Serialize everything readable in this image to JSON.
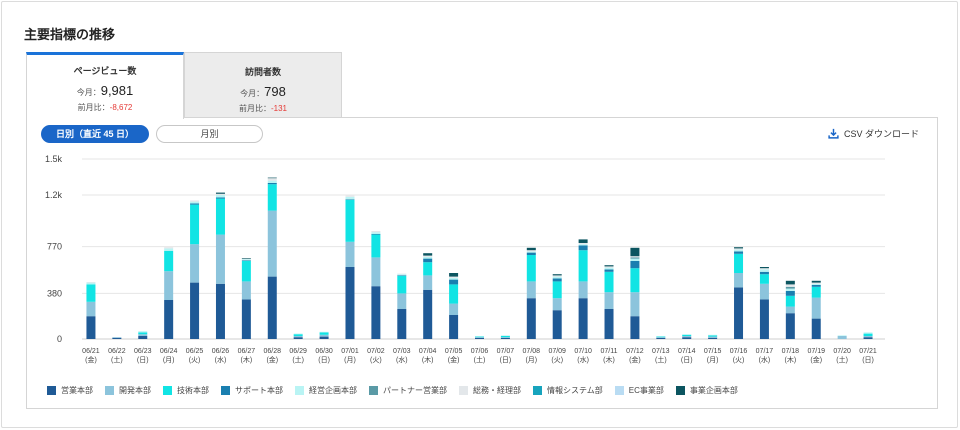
{
  "section": {
    "title": "主要指標の推移"
  },
  "tabs": [
    {
      "title": "ページビュー数",
      "month_label": "今月：",
      "month_value": "9,981",
      "prev_label": "前月比：",
      "prev_value": "-8,672"
    },
    {
      "title": "訪問者数",
      "month_label": "今月：",
      "month_value": "798",
      "prev_label": "前月比：",
      "prev_value": "-131"
    }
  ],
  "toggle": {
    "daily": "日別（直近 45 日）",
    "monthly": "月別"
  },
  "csv_button": {
    "label": "CSV ダウンロード",
    "icon": "download-icon"
  },
  "chart_data": {
    "type": "bar",
    "stacked": true,
    "ylim": [
      0,
      1500
    ],
    "yticks": [
      0,
      380,
      770,
      1200,
      1500
    ],
    "ytick_labels": [
      "0",
      "380",
      "770",
      "1.2k",
      "1.5k"
    ],
    "grid": true,
    "legend_position": "bottom",
    "categories": [
      [
        "06/21",
        "(金)"
      ],
      [
        "06/22",
        "(土)"
      ],
      [
        "06/23",
        "(日)"
      ],
      [
        "06/24",
        "(月)"
      ],
      [
        "06/25",
        "(火)"
      ],
      [
        "06/26",
        "(水)"
      ],
      [
        "06/27",
        "(木)"
      ],
      [
        "06/28",
        "(金)"
      ],
      [
        "06/29",
        "(土)"
      ],
      [
        "06/30",
        "(日)"
      ],
      [
        "07/01",
        "(月)"
      ],
      [
        "07/02",
        "(火)"
      ],
      [
        "07/03",
        "(水)"
      ],
      [
        "07/04",
        "(木)"
      ],
      [
        "07/05",
        "(金)"
      ],
      [
        "07/06",
        "(土)"
      ],
      [
        "07/07",
        "(日)"
      ],
      [
        "07/08",
        "(月)"
      ],
      [
        "07/09",
        "(火)"
      ],
      [
        "07/10",
        "(水)"
      ],
      [
        "07/11",
        "(木)"
      ],
      [
        "07/12",
        "(金)"
      ],
      [
        "07/13",
        "(土)"
      ],
      [
        "07/14",
        "(日)"
      ],
      [
        "07/15",
        "(月)"
      ],
      [
        "07/16",
        "(火)"
      ],
      [
        "07/17",
        "(水)"
      ],
      [
        "07/18",
        "(木)"
      ],
      [
        "07/19",
        "(金)"
      ],
      [
        "07/20",
        "(土)"
      ],
      [
        "07/21",
        "(日)"
      ]
    ],
    "series": [
      {
        "name": "営業本部",
        "color": "#1f5a96",
        "values": [
          190,
          10,
          25,
          325,
          470,
          460,
          330,
          520,
          15,
          20,
          600,
          440,
          250,
          410,
          200,
          10,
          10,
          340,
          240,
          340,
          250,
          190,
          10,
          15,
          10,
          430,
          330,
          215,
          170,
          0,
          15
        ]
      },
      {
        "name": "開発本部",
        "color": "#8cc4dc",
        "values": [
          120,
          5,
          15,
          240,
          320,
          410,
          150,
          550,
          10,
          15,
          210,
          240,
          130,
          120,
          95,
          5,
          5,
          140,
          100,
          140,
          140,
          200,
          5,
          10,
          10,
          120,
          130,
          55,
          175,
          25,
          10
        ]
      },
      {
        "name": "技術本部",
        "color": "#11e4e4",
        "values": [
          145,
          0,
          15,
          170,
          330,
          300,
          170,
          220,
          15,
          20,
          350,
          190,
          145,
          110,
          160,
          5,
          10,
          220,
          140,
          260,
          170,
          200,
          5,
          10,
          10,
          160,
          80,
          90,
          90,
          0,
          20
        ]
      },
      {
        "name": "サポート本部",
        "color": "#1a7fb0",
        "values": [
          0,
          0,
          0,
          0,
          10,
          10,
          5,
          10,
          0,
          0,
          5,
          5,
          5,
          30,
          40,
          0,
          0,
          20,
          25,
          40,
          20,
          60,
          0,
          0,
          0,
          20,
          20,
          40,
          15,
          0,
          0
        ]
      },
      {
        "name": "経営企画本部",
        "color": "#b9f4f4",
        "values": [
          15,
          0,
          10,
          20,
          15,
          20,
          10,
          20,
          5,
          5,
          20,
          15,
          10,
          15,
          15,
          5,
          5,
          10,
          15,
          10,
          15,
          20,
          5,
          5,
          5,
          15,
          20,
          20,
          10,
          5,
          10
        ]
      },
      {
        "name": "パートナー営業部",
        "color": "#5a9aa6",
        "values": [
          0,
          0,
          0,
          0,
          0,
          0,
          0,
          0,
          0,
          0,
          0,
          0,
          0,
          0,
          0,
          0,
          0,
          0,
          0,
          0,
          0,
          10,
          0,
          0,
          0,
          0,
          0,
          15,
          0,
          0,
          0
        ]
      },
      {
        "name": "総務・経理部",
        "color": "#e3e7ea",
        "values": [
          5,
          0,
          0,
          10,
          10,
          10,
          5,
          20,
          0,
          0,
          10,
          10,
          5,
          10,
          10,
          0,
          0,
          10,
          10,
          10,
          10,
          10,
          0,
          0,
          0,
          10,
          10,
          20,
          10,
          0,
          0
        ]
      },
      {
        "name": "情報システム部",
        "color": "#17a4bd",
        "values": [
          0,
          0,
          0,
          0,
          0,
          0,
          0,
          0,
          0,
          0,
          0,
          0,
          0,
          0,
          0,
          0,
          0,
          0,
          0,
          0,
          0,
          0,
          0,
          0,
          0,
          0,
          0,
          0,
          0,
          0,
          0
        ]
      },
      {
        "name": "EC事業部",
        "color": "#b9dcf3",
        "values": [
          0,
          0,
          0,
          0,
          0,
          0,
          0,
          0,
          0,
          0,
          0,
          0,
          0,
          0,
          0,
          0,
          0,
          0,
          0,
          0,
          0,
          0,
          0,
          0,
          0,
          0,
          0,
          0,
          0,
          0,
          0
        ]
      },
      {
        "name": "事業企画本部",
        "color": "#0c5560",
        "values": [
          0,
          0,
          0,
          0,
          0,
          10,
          5,
          5,
          0,
          0,
          0,
          0,
          0,
          20,
          30,
          0,
          0,
          20,
          10,
          30,
          10,
          70,
          0,
          0,
          0,
          10,
          10,
          30,
          15,
          0,
          0
        ]
      }
    ]
  }
}
